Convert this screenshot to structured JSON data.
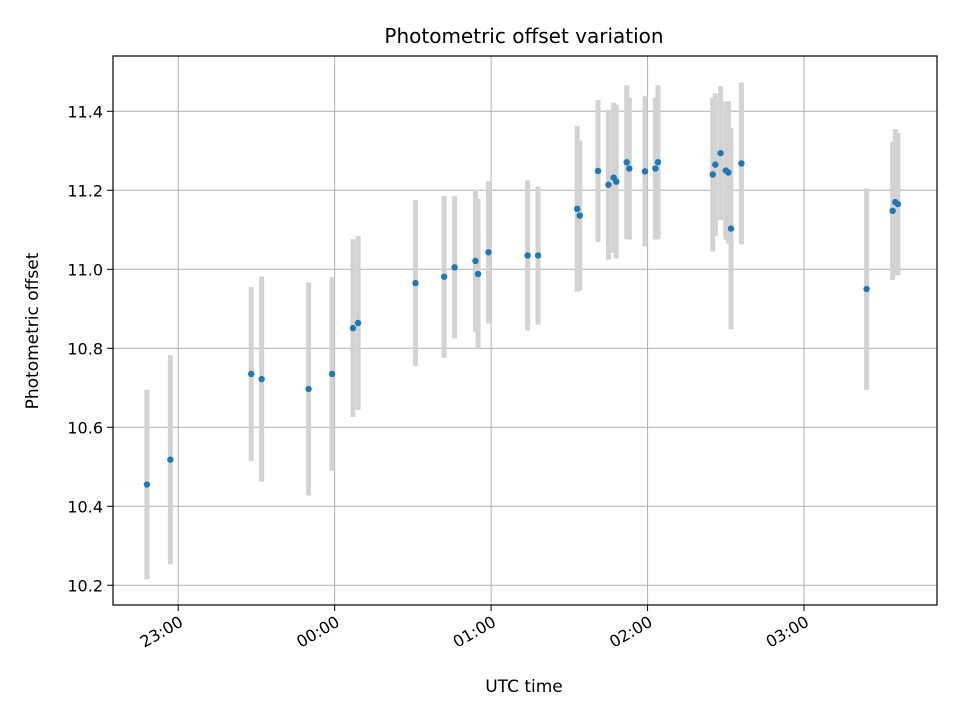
{
  "chart_data": {
    "type": "scatter",
    "title": "Photometric offset variation",
    "xlabel": "UTC time",
    "ylabel": "Photometric offset",
    "x_is_time": true,
    "x_ticks": [
      "23:00",
      "00:00",
      "01:00",
      "02:00",
      "03:00"
    ],
    "xlim": [
      "22:35",
      "03:51"
    ],
    "ylim": [
      10.15,
      11.54
    ],
    "y_ticks": [
      10.2,
      10.4,
      10.6,
      10.8,
      11.0,
      11.2,
      11.4
    ],
    "grid": true,
    "marker_color": "#1f77b4",
    "errorbar_color": "#d3d3d3",
    "points": [
      {
        "x": "22:48",
        "y": 10.455,
        "yerr": 0.24
      },
      {
        "x": "22:57",
        "y": 10.518,
        "yerr": 0.265
      },
      {
        "x": "23:28",
        "y": 10.735,
        "yerr": 0.22
      },
      {
        "x": "23:32",
        "y": 10.722,
        "yerr": 0.26
      },
      {
        "x": "23:50",
        "y": 10.697,
        "yerr": 0.27
      },
      {
        "x": "23:59",
        "y": 10.735,
        "yerr": 0.245
      },
      {
        "x": "00:07",
        "y": 10.851,
        "yerr": 0.225
      },
      {
        "x": "00:09",
        "y": 10.864,
        "yerr": 0.22
      },
      {
        "x": "00:31",
        "y": 10.965,
        "yerr": 0.21
      },
      {
        "x": "00:42",
        "y": 10.981,
        "yerr": 0.205
      },
      {
        "x": "00:46",
        "y": 11.005,
        "yerr": 0.18
      },
      {
        "x": "00:54",
        "y": 11.021,
        "yerr": 0.18
      },
      {
        "x": "00:55",
        "y": 10.988,
        "yerr": 0.19
      },
      {
        "x": "00:59",
        "y": 11.043,
        "yerr": 0.18
      },
      {
        "x": "01:14",
        "y": 11.035,
        "yerr": 0.19
      },
      {
        "x": "01:18",
        "y": 11.035,
        "yerr": 0.175
      },
      {
        "x": "01:33",
        "y": 11.153,
        "yerr": 0.21
      },
      {
        "x": "01:34",
        "y": 11.136,
        "yerr": 0.19
      },
      {
        "x": "01:41",
        "y": 11.249,
        "yerr": 0.18
      },
      {
        "x": "01:45",
        "y": 11.214,
        "yerr": 0.19
      },
      {
        "x": "01:47",
        "y": 11.232,
        "yerr": 0.19
      },
      {
        "x": "01:48",
        "y": 11.222,
        "yerr": 0.195
      },
      {
        "x": "01:52",
        "y": 11.271,
        "yerr": 0.195
      },
      {
        "x": "01:53",
        "y": 11.255,
        "yerr": 0.18
      },
      {
        "x": "01:59",
        "y": 11.248,
        "yerr": 0.19
      },
      {
        "x": "02:03",
        "y": 11.255,
        "yerr": 0.18
      },
      {
        "x": "02:04",
        "y": 11.271,
        "yerr": 0.195
      },
      {
        "x": "02:25",
        "y": 11.24,
        "yerr": 0.195
      },
      {
        "x": "02:26",
        "y": 11.265,
        "yerr": 0.18
      },
      {
        "x": "02:28",
        "y": 11.294,
        "yerr": 0.17
      },
      {
        "x": "02:30",
        "y": 11.25,
        "yerr": 0.175
      },
      {
        "x": "02:31",
        "y": 11.245,
        "yerr": 0.18
      },
      {
        "x": "02:32",
        "y": 11.103,
        "yerr": 0.255
      },
      {
        "x": "02:36",
        "y": 11.268,
        "yerr": 0.205
      },
      {
        "x": "03:24",
        "y": 10.95,
        "yerr": 0.255
      },
      {
        "x": "03:34",
        "y": 11.148,
        "yerr": 0.175
      },
      {
        "x": "03:35",
        "y": 11.17,
        "yerr": 0.185
      },
      {
        "x": "03:36",
        "y": 11.165,
        "yerr": 0.18
      }
    ]
  }
}
